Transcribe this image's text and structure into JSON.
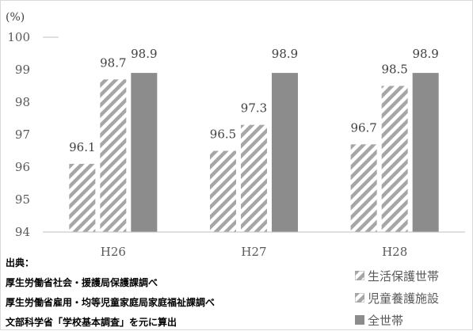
{
  "chart_data": {
    "type": "bar",
    "unit_label": "(%)",
    "categories": [
      "H26",
      "H27",
      "H28"
    ],
    "series": [
      {
        "name": "生活保護世帯",
        "values": [
          96.1,
          96.5,
          96.7
        ],
        "fill": "hatch",
        "color": "#a6a6a6"
      },
      {
        "name": "児童養護施設",
        "values": [
          98.7,
          97.3,
          98.5
        ],
        "fill": "hatch",
        "color": "#a6a6a6"
      },
      {
        "name": "全世帯",
        "values": [
          98.9,
          98.9,
          98.9
        ],
        "fill": "solid",
        "color": "#8c8c8c"
      }
    ],
    "data_labels": [
      [
        "96.1",
        "96.5",
        "96.7"
      ],
      [
        "98.7",
        "97.3",
        "98.5"
      ],
      [
        "98.9",
        "98.9",
        "98.9"
      ]
    ],
    "ylim": [
      94,
      100
    ],
    "yticks": [
      "94",
      "95",
      "96",
      "97",
      "98",
      "99",
      "100"
    ],
    "grid": false,
    "legend_position": "bottom-right"
  },
  "source": {
    "heading": "出典：",
    "lines": [
      "厚生労働省社会・援護局保護課調べ",
      "厚生労働省雇用・均等児童家庭局家庭福祉課調べ",
      "文部科学省「学校基本調査」を元に算出"
    ]
  }
}
